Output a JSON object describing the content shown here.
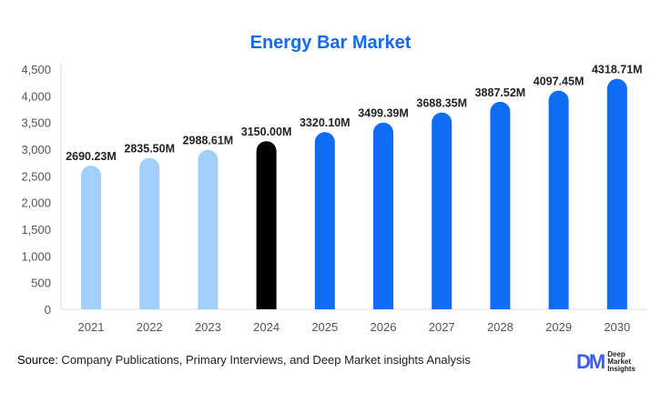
{
  "chart_data": {
    "type": "bar",
    "title": "Energy Bar Market",
    "categories": [
      "2021",
      "2022",
      "2023",
      "2024",
      "2025",
      "2026",
      "2027",
      "2028",
      "2029",
      "2030"
    ],
    "values": [
      2690.23,
      2835.5,
      2988.61,
      3150.0,
      3320.1,
      3499.39,
      3688.35,
      3887.52,
      4097.45,
      4318.71
    ],
    "data_labels": [
      "2690.23M",
      "2835.50M",
      "2988.61M",
      "3150.00M",
      "3320.10M",
      "3499.39M",
      "3688.35M",
      "3887.52M",
      "4097.45M",
      "4318.71M"
    ],
    "ylim": [
      0,
      4500
    ],
    "yticks": [
      "0",
      "500",
      "1,000",
      "1,500",
      "2,000",
      "2,500",
      "3,000",
      "3,500",
      "4,000",
      "4,500"
    ],
    "grid": false,
    "bar_colors": [
      "#a3cffb",
      "#a3cffb",
      "#a3cffb",
      "#000000",
      "#0f6cf4",
      "#0f6cf4",
      "#0f6cf4",
      "#0f6cf4",
      "#0f6cf4",
      "#0f6cf4"
    ]
  },
  "footer": {
    "source_label": "Source",
    "source_text": ": Company Publications, Primary Interviews, and Deep Market insights Analysis"
  },
  "logo": {
    "mark": "DM",
    "lines": [
      "Deep",
      "Market",
      "Insights"
    ]
  }
}
